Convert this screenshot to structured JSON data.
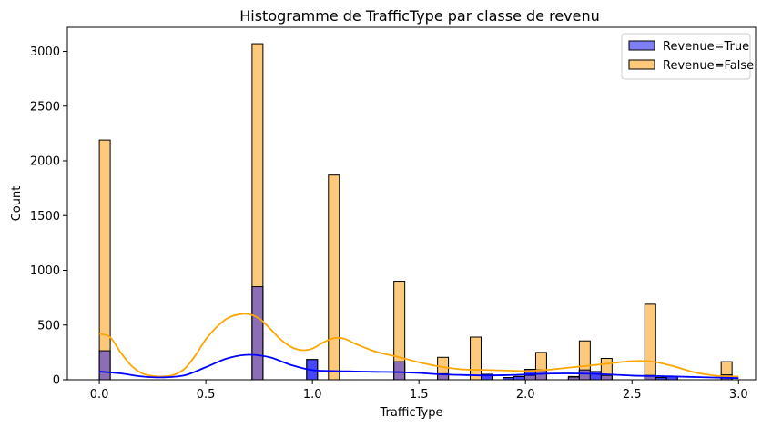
{
  "chart_data": {
    "type": "bar",
    "title": "Histogramme de TrafficType par classe de revenu",
    "xlabel": "TrafficType",
    "ylabel": "Count",
    "xlim": [
      -0.15,
      3.08
    ],
    "ylim": [
      0,
      3220
    ],
    "xticks": [
      0.0,
      0.5,
      1.0,
      1.5,
      2.0,
      2.5,
      3.0
    ],
    "xtick_labels": [
      "0.0",
      "0.5",
      "1.0",
      "1.5",
      "2.0",
      "2.5",
      "3.0"
    ],
    "yticks": [
      0,
      500,
      1000,
      1500,
      2000,
      2500,
      3000
    ],
    "ytick_labels": [
      "0",
      "500",
      "1000",
      "1500",
      "2000",
      "2500",
      "3000"
    ],
    "grid": false,
    "legend_position": "top-right",
    "bin_width": 0.0512,
    "series": [
      {
        "name": "Revenue=True",
        "color": "#0000ff",
        "fill_color": "#7f7ff5",
        "bins": [
          {
            "x": 0.0,
            "count": 265
          },
          {
            "x": 0.7168,
            "count": 850
          },
          {
            "x": 0.9728,
            "count": 185
          },
          {
            "x": 1.3824,
            "count": 165
          },
          {
            "x": 1.5872,
            "count": 55
          },
          {
            "x": 1.792,
            "count": 50
          },
          {
            "x": 1.8944,
            "count": 20
          },
          {
            "x": 1.9456,
            "count": 30
          },
          {
            "x": 1.9968,
            "count": 95
          },
          {
            "x": 2.048,
            "count": 90
          },
          {
            "x": 2.2016,
            "count": 25
          },
          {
            "x": 2.2528,
            "count": 90
          },
          {
            "x": 2.304,
            "count": 75
          },
          {
            "x": 2.3552,
            "count": 40
          },
          {
            "x": 2.56,
            "count": 40
          },
          {
            "x": 2.6112,
            "count": 20
          },
          {
            "x": 2.6624,
            "count": 30
          },
          {
            "x": 2.9184,
            "count": 45
          }
        ],
        "kde_x": [
          0.0,
          0.1,
          0.2,
          0.3,
          0.4,
          0.5,
          0.6,
          0.7,
          0.8,
          0.9,
          1.0,
          1.1,
          1.2,
          1.3,
          1.4,
          1.5,
          1.6,
          1.7,
          1.8,
          1.9,
          2.0,
          2.1,
          2.2,
          2.3,
          2.4,
          2.5,
          2.6,
          2.7,
          2.8,
          2.9,
          3.0
        ],
        "kde_y": [
          75,
          58,
          30,
          22,
          40,
          115,
          195,
          228,
          205,
          135,
          88,
          80,
          76,
          72,
          70,
          62,
          50,
          44,
          40,
          42,
          48,
          56,
          58,
          55,
          48,
          38,
          34,
          30,
          25,
          20,
          15
        ]
      },
      {
        "name": "Revenue=False",
        "color": "#ffa500",
        "fill_color": "#fdc97a",
        "bins": [
          {
            "x": 0.0,
            "count": 2190
          },
          {
            "x": 0.7168,
            "count": 3070
          },
          {
            "x": 1.0752,
            "count": 1870
          },
          {
            "x": 1.3824,
            "count": 900
          },
          {
            "x": 1.5872,
            "count": 205
          },
          {
            "x": 1.7408,
            "count": 390
          },
          {
            "x": 1.9968,
            "count": 40
          },
          {
            "x": 2.048,
            "count": 250
          },
          {
            "x": 2.2016,
            "count": 30
          },
          {
            "x": 2.2528,
            "count": 355
          },
          {
            "x": 2.3552,
            "count": 195
          },
          {
            "x": 2.56,
            "count": 690
          },
          {
            "x": 2.9184,
            "count": 165
          }
        ],
        "kde_x": [
          0.0,
          0.05,
          0.1,
          0.15,
          0.2,
          0.25,
          0.3,
          0.35,
          0.4,
          0.45,
          0.5,
          0.55,
          0.6,
          0.65,
          0.7,
          0.75,
          0.8,
          0.85,
          0.9,
          0.95,
          1.0,
          1.05,
          1.1,
          1.15,
          1.2,
          1.3,
          1.4,
          1.5,
          1.6,
          1.7,
          1.8,
          1.9,
          2.0,
          2.1,
          2.2,
          2.3,
          2.4,
          2.5,
          2.6,
          2.7,
          2.8,
          2.9,
          3.0
        ],
        "kde_y": [
          420,
          390,
          250,
          130,
          60,
          35,
          30,
          45,
          100,
          220,
          370,
          480,
          560,
          595,
          600,
          560,
          470,
          370,
          300,
          270,
          285,
          340,
          380,
          375,
          330,
          255,
          210,
          160,
          120,
          95,
          90,
          85,
          80,
          90,
          110,
          130,
          150,
          170,
          165,
          120,
          65,
          35,
          30
        ]
      }
    ]
  }
}
